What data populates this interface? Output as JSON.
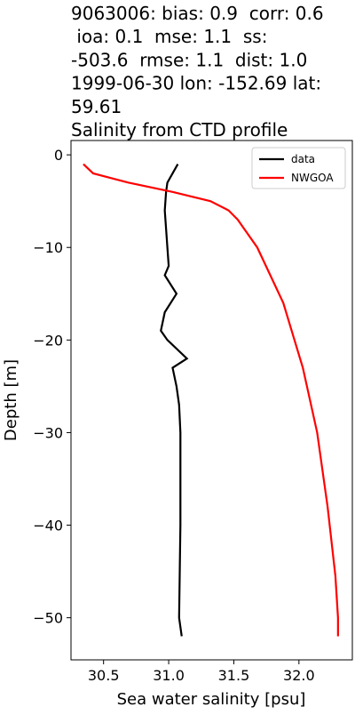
{
  "chart_data": {
    "type": "line",
    "title": [
      "9063006: bias: 0.9  corr: 0.6",
      " ioa: 0.1  mse: 1.1  ss:",
      "-503.6  rmse: 1.1  dist: 1.0",
      "1999-06-30 lon: -152.69 lat:",
      "59.61",
      "Salinity from CTD profile"
    ],
    "x_label": "Sea water salinity [psu]",
    "y_label": "Depth [m]",
    "xlim": [
      30.25,
      32.41
    ],
    "ylim": [
      -54.55,
      1.55
    ],
    "xticks": [
      30.5,
      {
        "value": 31.0,
        "label": "31.0"
      },
      31.5,
      {
        "value": 32.0,
        "label": "32.0"
      }
    ],
    "yticks": [
      0,
      {
        "value": -10,
        "label": "−10"
      },
      {
        "value": -20,
        "label": "−20"
      },
      {
        "value": -30,
        "label": "−30"
      },
      {
        "value": -40,
        "label": "−40"
      },
      {
        "value": -50,
        "label": "−50"
      }
    ],
    "legend": "upper right",
    "series": [
      {
        "name": "data",
        "color": "#000000",
        "x": [
          31.07,
          31.03,
          30.99,
          30.98,
          30.97,
          30.98,
          30.99,
          31.0,
          30.97,
          31.06,
          30.97,
          30.94,
          30.99,
          31.14,
          31.03,
          31.06,
          31.08,
          31.09,
          31.09,
          31.08,
          31.1
        ],
        "values": [
          -1,
          -2,
          -3,
          -4,
          -6,
          -8,
          -10,
          -12,
          -13,
          -15,
          -17,
          -19,
          -20,
          -22,
          -23,
          -25,
          -27,
          -30,
          -40,
          -50,
          -52
        ]
      },
      {
        "name": "NWGOA",
        "color": "#ff0000",
        "x": [
          30.345,
          30.42,
          30.69,
          31.03,
          31.32,
          31.46,
          31.53,
          31.68,
          31.88,
          32.03,
          32.14,
          32.22,
          32.28,
          32.3,
          32.3
        ],
        "values": [
          -1,
          -2,
          -3,
          -4,
          -5,
          -6,
          -7,
          -10,
          -16,
          -23,
          -30,
          -38,
          -45.5,
          -50,
          -52
        ]
      }
    ]
  }
}
